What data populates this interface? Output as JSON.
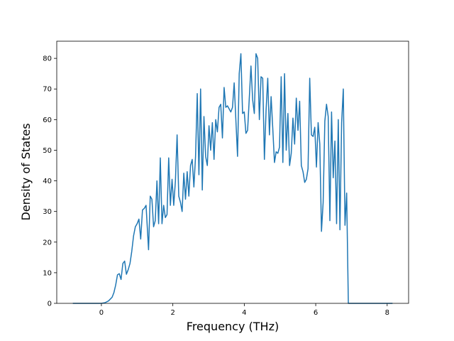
{
  "chart_data": {
    "type": "line",
    "x_label": "Frequency (THz)",
    "y_label": "Density of States",
    "color": "#1f77b4",
    "xlim": [
      -1.25,
      8.6
    ],
    "ylim": [
      0,
      85.6
    ],
    "xticks": [
      0,
      2,
      4,
      6,
      8
    ],
    "yticks": [
      0,
      10,
      20,
      30,
      40,
      50,
      60,
      70,
      80
    ],
    "grid": false,
    "x": [
      -0.8,
      0,
      0.1,
      0.2,
      0.3,
      0.35,
      0.4,
      0.45,
      0.5,
      0.55,
      0.6,
      0.65,
      0.7,
      0.75,
      0.8,
      0.85,
      0.9,
      0.95,
      1.0,
      1.05,
      1.1,
      1.15,
      1.2,
      1.25,
      1.32,
      1.367,
      1.414,
      1.461,
      1.508,
      1.555,
      1.602,
      1.649,
      1.696,
      1.743,
      1.79,
      1.837,
      1.884,
      1.931,
      1.978,
      2.025,
      2.072,
      2.119,
      2.166,
      2.213,
      2.26,
      2.307,
      2.354,
      2.401,
      2.448,
      2.495,
      2.542,
      2.589,
      2.636,
      2.683,
      2.73,
      2.777,
      2.824,
      2.871,
      2.918,
      2.965,
      3.012,
      3.059,
      3.106,
      3.153,
      3.2,
      3.247,
      3.294,
      3.341,
      3.388,
      3.435,
      3.482,
      3.529,
      3.576,
      3.623,
      3.67,
      3.717,
      3.764,
      3.811,
      3.858,
      3.905,
      3.952,
      3.999,
      4.046,
      4.093,
      4.14,
      4.187,
      4.234,
      4.281,
      4.328,
      4.375,
      4.422,
      4.469,
      4.516,
      4.563,
      4.61,
      4.657,
      4.704,
      4.751,
      4.798,
      4.845,
      4.892,
      4.939,
      4.986,
      5.033,
      5.08,
      5.127,
      5.174,
      5.221,
      5.268,
      5.315,
      5.362,
      5.409,
      5.456,
      5.503,
      5.55,
      5.597,
      5.644,
      5.691,
      5.738,
      5.785,
      5.832,
      5.879,
      5.926,
      5.973,
      6.02,
      6.067,
      6.114,
      6.161,
      6.208,
      6.255,
      6.302,
      6.349,
      6.396,
      6.443,
      6.49,
      6.537,
      6.584,
      6.631,
      6.678,
      6.725,
      6.772,
      6.819,
      6.866,
      6.913,
      8.15
    ],
    "values": [
      0,
      0,
      0.2,
      0.8,
      2,
      3.5,
      6,
      9.3,
      9.7,
      7.8,
      13,
      13.8,
      9.5,
      11,
      13,
      17,
      22,
      25,
      26,
      27.5,
      21,
      30.5,
      31,
      32,
      17.5,
      35,
      34,
      25,
      27,
      40,
      26,
      47.5,
      26,
      32,
      28,
      29,
      47.5,
      32,
      40.5,
      32,
      40,
      55,
      35,
      33,
      30,
      42.5,
      34,
      43,
      35,
      45,
      47,
      38,
      48,
      68.5,
      42,
      70,
      37,
      61,
      48,
      45,
      58,
      50,
      59,
      47,
      60,
      56,
      64,
      65,
      54,
      70.5,
      64,
      64.5,
      63.5,
      62.5,
      64,
      72,
      60,
      48,
      75,
      81.5,
      62,
      62.5,
      55.5,
      56.5,
      67,
      77.5,
      66.5,
      62,
      81.5,
      80,
      60,
      74,
      73.5,
      47,
      63,
      73.5,
      55,
      67.5,
      57,
      46,
      49.5,
      49,
      51,
      74,
      46,
      75,
      50,
      62,
      45,
      49,
      60.5,
      52,
      67,
      56.5,
      66,
      45,
      43,
      39.5,
      40.5,
      44,
      73.5,
      55,
      54.5,
      57.5,
      44.5,
      59,
      52,
      23.5,
      33,
      59.5,
      65,
      61,
      27,
      62.5,
      41,
      53,
      26,
      60,
      24,
      59,
      70,
      25.5,
      36,
      0,
      0
    ]
  }
}
